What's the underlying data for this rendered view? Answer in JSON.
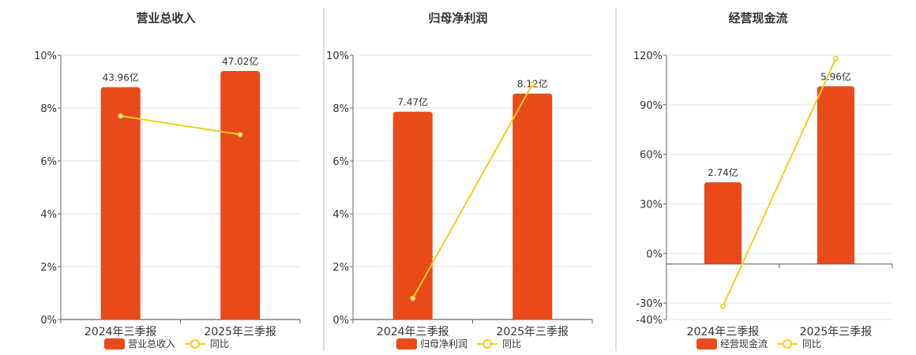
{
  "colors": {
    "bar": "#E84A1A",
    "line": "#F2CF1E",
    "grid": "#E6E6EC",
    "axis": "#666666",
    "text": "#333333",
    "divider": "#BBBBBB"
  },
  "chart_data": [
    {
      "type": "bar",
      "title": "营业总收入",
      "categories": [
        "2024年三季报",
        "2025年三季报"
      ],
      "bar_values": [
        43.96,
        47.02
      ],
      "bar_labels": [
        "43.96亿",
        "47.02亿"
      ],
      "bar_axis_range": [
        0,
        50
      ],
      "line_values": [
        7.7,
        7.0
      ],
      "ylim": [
        0,
        10
      ],
      "y_ticks": [
        0,
        2,
        4,
        6,
        8,
        10
      ],
      "y_tick_labels": [
        "0%",
        "2%",
        "4%",
        "6%",
        "8%",
        "10%"
      ],
      "legend": {
        "bar": "营业总收入",
        "line": "同比"
      },
      "legend_position": "bottom",
      "grid": true
    },
    {
      "type": "bar",
      "title": "归母净利润",
      "categories": [
        "2024年三季报",
        "2025年三季报"
      ],
      "bar_values": [
        7.47,
        8.12
      ],
      "bar_labels": [
        "7.47亿",
        "8.12亿"
      ],
      "bar_axis_range": [
        0,
        9.5
      ],
      "line_values": [
        0.8,
        8.9
      ],
      "ylim": [
        0,
        10
      ],
      "y_ticks": [
        0,
        2,
        4,
        6,
        8,
        10
      ],
      "y_tick_labels": [
        "0%",
        "2%",
        "4%",
        "6%",
        "8%",
        "10%"
      ],
      "legend": {
        "bar": "归母净利润",
        "line": "同比"
      },
      "legend_position": "bottom",
      "grid": true
    },
    {
      "type": "bar",
      "title": "经营现金流",
      "categories": [
        "2024年三季报",
        "2025年三季报"
      ],
      "bar_values": [
        2.74,
        5.96
      ],
      "bar_labels": [
        "2.74亿",
        "5.96亿"
      ],
      "bar_axis_range": [
        -1.86,
        7.0
      ],
      "line_values": [
        -32,
        118
      ],
      "ylim": [
        -40,
        120
      ],
      "y_ticks": [
        -40,
        -30,
        0,
        30,
        60,
        90,
        120
      ],
      "y_tick_labels": [
        "-40%",
        "-30%",
        "0%",
        "30%",
        "60%",
        "90%",
        "120%"
      ],
      "legend": {
        "bar": "经营现金流",
        "line": "同比"
      },
      "legend_position": "bottom",
      "grid": true
    }
  ]
}
